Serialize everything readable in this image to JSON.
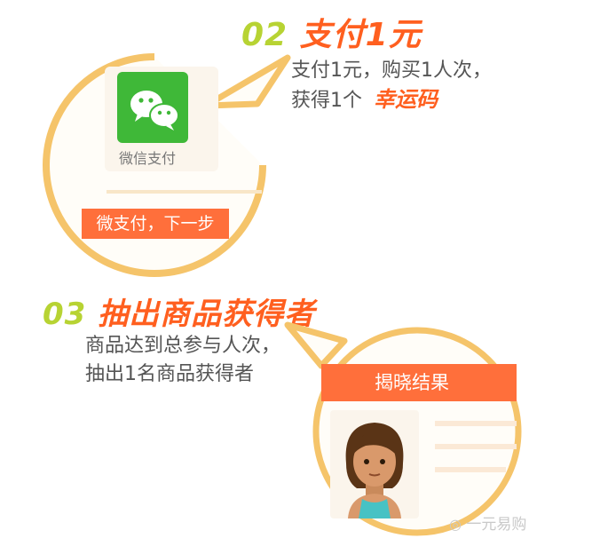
{
  "step2": {
    "number": "02",
    "title": "支付1元",
    "desc_line1": "支付1元，购买1人次，",
    "desc_line2_prefix": "获得1个",
    "desc_line2_highlight": "幸运码",
    "wechat_label": "微信支付",
    "action_label": "微支付，下一步"
  },
  "step3": {
    "number": "03",
    "title": "抽出商品获得者",
    "desc_line1": "商品达到总参与人次，",
    "desc_line2": "抽出1名商品获得者",
    "result_label": "揭晓结果"
  },
  "watermark": "一元易购",
  "colors": {
    "accent": "#ff5f1f",
    "number": "#b7d333",
    "circle_border": "#f5c46a",
    "wechat_green": "#3fb838",
    "orange_bar": "#ff6f3b"
  }
}
